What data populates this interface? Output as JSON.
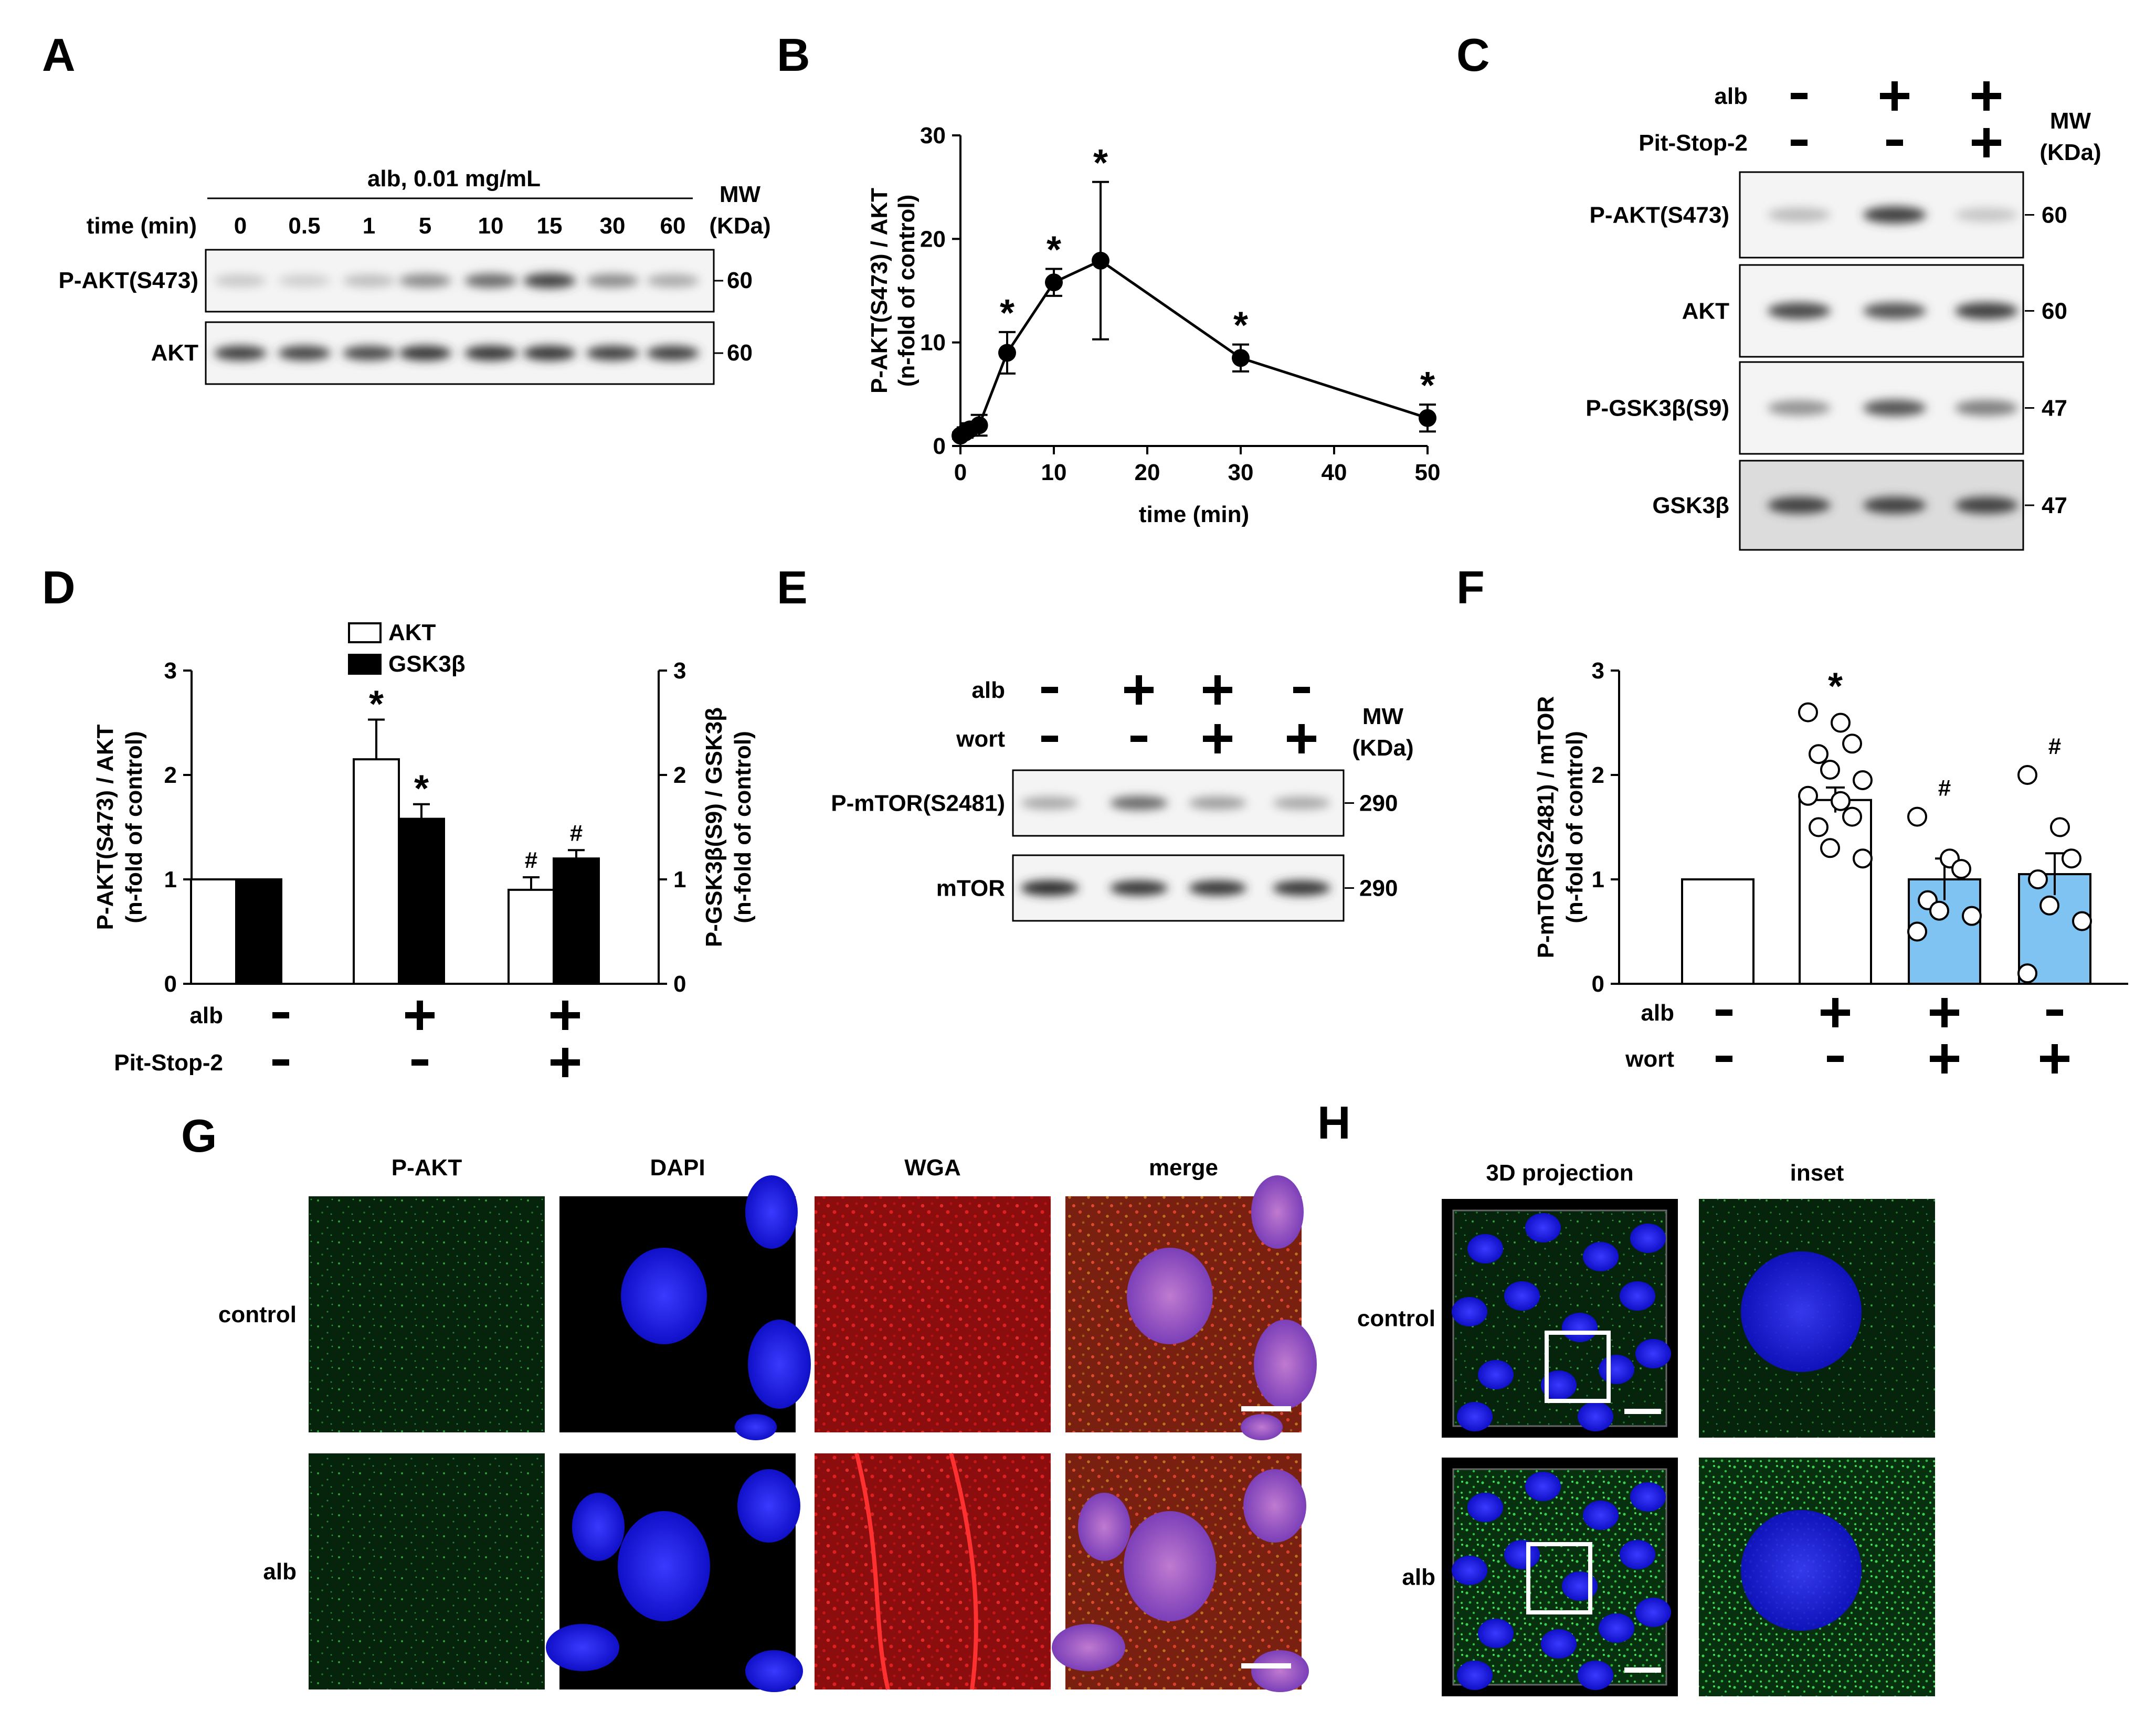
{
  "panels": {
    "A": {
      "letter": "A",
      "header": "alb, 0.01 mg/mL",
      "time_label": "time (min)",
      "times": [
        "0",
        "0.5",
        "1",
        "5",
        "10",
        "15",
        "30",
        "60"
      ],
      "mw_label": "MW",
      "mw_unit": "(KDa)",
      "rows": [
        {
          "label": "P-AKT(S473)",
          "mw": "60"
        },
        {
          "label": "AKT",
          "mw": "60"
        }
      ]
    },
    "B": {
      "letter": "B"
    },
    "C": {
      "letter": "C",
      "cond_labels": [
        "alb",
        "Pit-Stop-2"
      ],
      "conds": [
        [
          "-",
          "+",
          "+"
        ],
        [
          "-",
          "-",
          "+"
        ]
      ],
      "mw_label": "MW",
      "mw_unit": "(KDa)",
      "rows": [
        {
          "label": "P-AKT(S473)",
          "mw": "60"
        },
        {
          "label": "AKT",
          "mw": "60"
        },
        {
          "label": "P-GSK3β(S9)",
          "mw": "47"
        },
        {
          "label": "GSK3β",
          "mw": "47"
        }
      ]
    },
    "D": {
      "letter": "D",
      "cond_labels": [
        "alb",
        "Pit-Stop-2"
      ],
      "conds": [
        [
          "-",
          "+",
          "+"
        ],
        [
          "-",
          "-",
          "+"
        ]
      ]
    },
    "E": {
      "letter": "E",
      "cond_labels": [
        "alb",
        "wort"
      ],
      "conds": [
        [
          "-",
          "+",
          "+",
          "-"
        ],
        [
          "-",
          "-",
          "+",
          "+"
        ]
      ],
      "mw_label": "MW",
      "mw_unit": "(KDa)",
      "rows": [
        {
          "label": "P-mTOR(S2481)",
          "mw": "290"
        },
        {
          "label": "mTOR",
          "mw": "290"
        }
      ]
    },
    "F": {
      "letter": "F",
      "cond_labels": [
        "alb",
        "wort"
      ],
      "conds": [
        [
          "-",
          "+",
          "+",
          "-"
        ],
        [
          "-",
          "-",
          "+",
          "+"
        ]
      ]
    },
    "G": {
      "letter": "G",
      "columns": [
        "P-AKT",
        "DAPI",
        "WGA",
        "merge"
      ],
      "rows": [
        "control",
        "alb"
      ]
    },
    "H": {
      "letter": "H",
      "columns": [
        "3D projection",
        "inset"
      ],
      "rows": [
        "control",
        "alb"
      ]
    }
  },
  "chart_data": [
    {
      "panel": "B",
      "type": "line",
      "xlabel": "time (min)",
      "ylabel": "P-AKT(S473) / AKT",
      "ylabel2": "(n-fold of control)",
      "xlim": [
        0,
        50
      ],
      "ylim": [
        0,
        30
      ],
      "xticks": [
        0,
        10,
        20,
        30,
        40,
        50
      ],
      "yticks": [
        0,
        10,
        20,
        30
      ],
      "x": [
        0,
        0.5,
        1,
        2,
        5,
        10,
        15,
        30,
        50
      ],
      "y": [
        1.0,
        1.3,
        1.6,
        2.0,
        9.0,
        15.8,
        17.9,
        8.5,
        2.7
      ],
      "err": [
        0.3,
        0.5,
        0.6,
        1.0,
        2.0,
        1.3,
        7.6,
        1.3,
        1.3
      ],
      "star": [
        false,
        false,
        false,
        false,
        true,
        true,
        true,
        true,
        true
      ],
      "star_label": "*"
    },
    {
      "panel": "D",
      "type": "bar",
      "ylabel": "P-AKT(S473) / AKT",
      "ylabel2": "(n-fold of control)",
      "ylabel_right": "P-GSK3β(S9) / GSK3β",
      "ylabel_right2": "(n-fold of control)",
      "ylim": [
        0,
        3
      ],
      "yticks": [
        0,
        1,
        2,
        3
      ],
      "series": [
        {
          "name": "AKT",
          "color": "#ffffff",
          "values": [
            1.0,
            2.15,
            0.9
          ],
          "err": [
            0,
            0.38,
            0.12
          ],
          "marks": [
            "",
            "*",
            "#"
          ]
        },
        {
          "name": "GSK3β",
          "color": "#000000",
          "values": [
            1.0,
            1.58,
            1.2
          ],
          "err": [
            0,
            0.14,
            0.08
          ],
          "marks": [
            "",
            "*",
            "#"
          ]
        }
      ]
    },
    {
      "panel": "F",
      "type": "bar",
      "ylabel": "P-mTOR(S2481) / mTOR",
      "ylabel2": "(n-fold of control)",
      "ylim": [
        0,
        3
      ],
      "yticks": [
        0,
        1,
        2,
        3
      ],
      "values": [
        1.0,
        1.76,
        1.0,
        1.05
      ],
      "err": [
        0,
        0.12,
        0.2,
        0.2
      ],
      "colors": [
        "#ffffff",
        "#ffffff",
        "#7fc3f3",
        "#7fc3f3"
      ],
      "marks": [
        "",
        "*",
        "#",
        "#"
      ],
      "points": [
        [],
        [
          2.6,
          2.5,
          2.3,
          2.2,
          2.05,
          1.95,
          1.8,
          1.75,
          1.6,
          1.5,
          1.3,
          1.2
        ],
        [
          1.6,
          1.2,
          1.1,
          0.8,
          0.7,
          0.65,
          0.5
        ],
        [
          2.0,
          1.5,
          1.2,
          1.0,
          0.75,
          0.6,
          0.1
        ]
      ]
    }
  ]
}
